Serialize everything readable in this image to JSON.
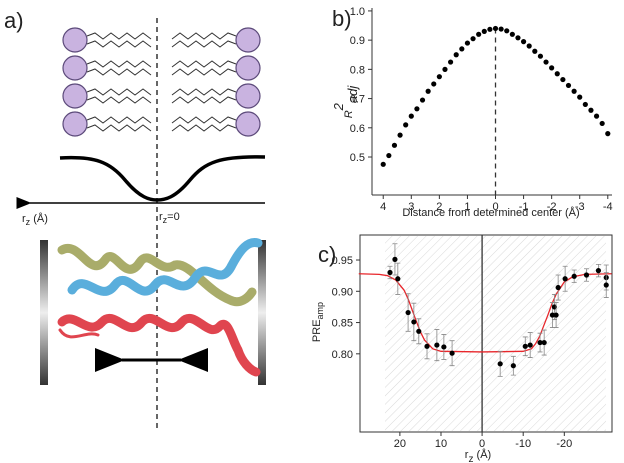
{
  "panel_labels": [
    "a)",
    "b)",
    "c)"
  ],
  "diagram": {
    "axis_label": {
      "base": "r",
      "sub": "z",
      "rest": " (Å)"
    },
    "zero_label": {
      "base": "r",
      "sub": "z",
      "rest": "=0"
    }
  },
  "chart_data": [
    {
      "type": "scatter",
      "x_label": "Distance from determined center (Å)",
      "y_label": {
        "base": "R",
        "sup": "2",
        "sub": "adj"
      },
      "x": [
        4,
        3.8,
        3.6,
        3.4,
        3.2,
        3.0,
        2.8,
        2.6,
        2.4,
        2.2,
        2.0,
        1.8,
        1.6,
        1.4,
        1.2,
        1.0,
        0.8,
        0.6,
        0.4,
        0.2,
        0,
        -0.2,
        -0.4,
        -0.6,
        -0.8,
        -1.0,
        -1.2,
        -1.4,
        -1.6,
        -1.8,
        -2.0,
        -2.2,
        -2.4,
        -2.6,
        -2.8,
        -3.0,
        -3.2,
        -3.4,
        -3.6,
        -3.8,
        -4.0
      ],
      "values": [
        0.475,
        0.505,
        0.54,
        0.575,
        0.61,
        0.64,
        0.665,
        0.695,
        0.725,
        0.75,
        0.775,
        0.8,
        0.825,
        0.85,
        0.87,
        0.89,
        0.905,
        0.92,
        0.93,
        0.937,
        0.94,
        0.938,
        0.932,
        0.92,
        0.908,
        0.895,
        0.88,
        0.862,
        0.845,
        0.825,
        0.805,
        0.785,
        0.765,
        0.745,
        0.725,
        0.705,
        0.68,
        0.66,
        0.64,
        0.615,
        0.58
      ],
      "color": "#000000",
      "xlim": [
        4.4,
        -4.15
      ],
      "xticks": [
        4,
        3,
        2,
        1,
        0,
        -1,
        -2,
        -3,
        -4
      ],
      "ylim": [
        0.37,
        1.01
      ],
      "yticks": [
        0.5,
        0.6,
        0.7,
        0.8,
        0.9,
        {
          "value": 1,
          "label": "1.0"
        }
      ],
      "vline": 0,
      "vline_style": "dashed"
    },
    {
      "type": "scatter",
      "x_label": {
        "base": "r",
        "sub": "z",
        "rest": " (Å)"
      },
      "y_label": {
        "base": "PRE",
        "sub": "amp"
      },
      "x": [
        22.4,
        21.2,
        20.5,
        18,
        16.6,
        15.4,
        13.4,
        11,
        9.3,
        7.3,
        -4.4,
        -7.6,
        -10.5,
        -11.7,
        -14.1,
        -15.1,
        -17.1,
        -17.6,
        -18,
        -18.5,
        -20.2,
        -22.4,
        -25.4,
        -28.3,
        -30.2,
        -30.2
      ],
      "values": [
        0.93,
        0.951,
        0.92,
        0.866,
        0.851,
        0.836,
        0.812,
        0.814,
        0.811,
        0.801,
        0.784,
        0.781,
        0.812,
        0.814,
        0.818,
        0.818,
        0.862,
        0.875,
        0.862,
        0.906,
        0.92,
        0.924,
        0.926,
        0.933,
        0.922,
        0.91
      ],
      "errors": [
        0.01,
        0.025,
        0.025,
        0.03,
        0.03,
        0.02,
        0.02,
        0.025,
        0.02,
        0.02,
        0.02,
        0.015,
        0.015,
        0.02,
        0.015,
        0.02,
        0.02,
        0.02,
        0.02,
        0.02,
        0.02,
        0.01,
        0.01,
        0.01,
        0.02,
        0.02
      ],
      "color": "#000000",
      "fit": {
        "color": "#e8262b",
        "x": [
          30,
          25,
          23,
          21,
          19,
          18,
          17,
          16,
          15,
          14,
          12,
          10,
          0,
          -10,
          -12,
          -13,
          -14,
          -15,
          -16,
          -17,
          -18,
          -20,
          -22,
          -25,
          -31.5
        ],
        "values": [
          0.928,
          0.927,
          0.925,
          0.918,
          0.902,
          0.888,
          0.87,
          0.852,
          0.835,
          0.822,
          0.808,
          0.804,
          0.803,
          0.804,
          0.808,
          0.816,
          0.828,
          0.845,
          0.862,
          0.88,
          0.895,
          0.915,
          0.923,
          0.927,
          0.928
        ]
      },
      "xlim": [
        29.7,
        -31.6
      ],
      "xticks": [
        20,
        10,
        0,
        -10,
        -20
      ],
      "ylim": [
        0.675,
        0.99
      ],
      "yticks": [
        {
          "value": 0.8,
          "label": "0.80"
        },
        0.85,
        {
          "value": 0.9,
          "label": "0.90"
        },
        0.95
      ],
      "vline": 0,
      "vline_style": "solid"
    }
  ]
}
